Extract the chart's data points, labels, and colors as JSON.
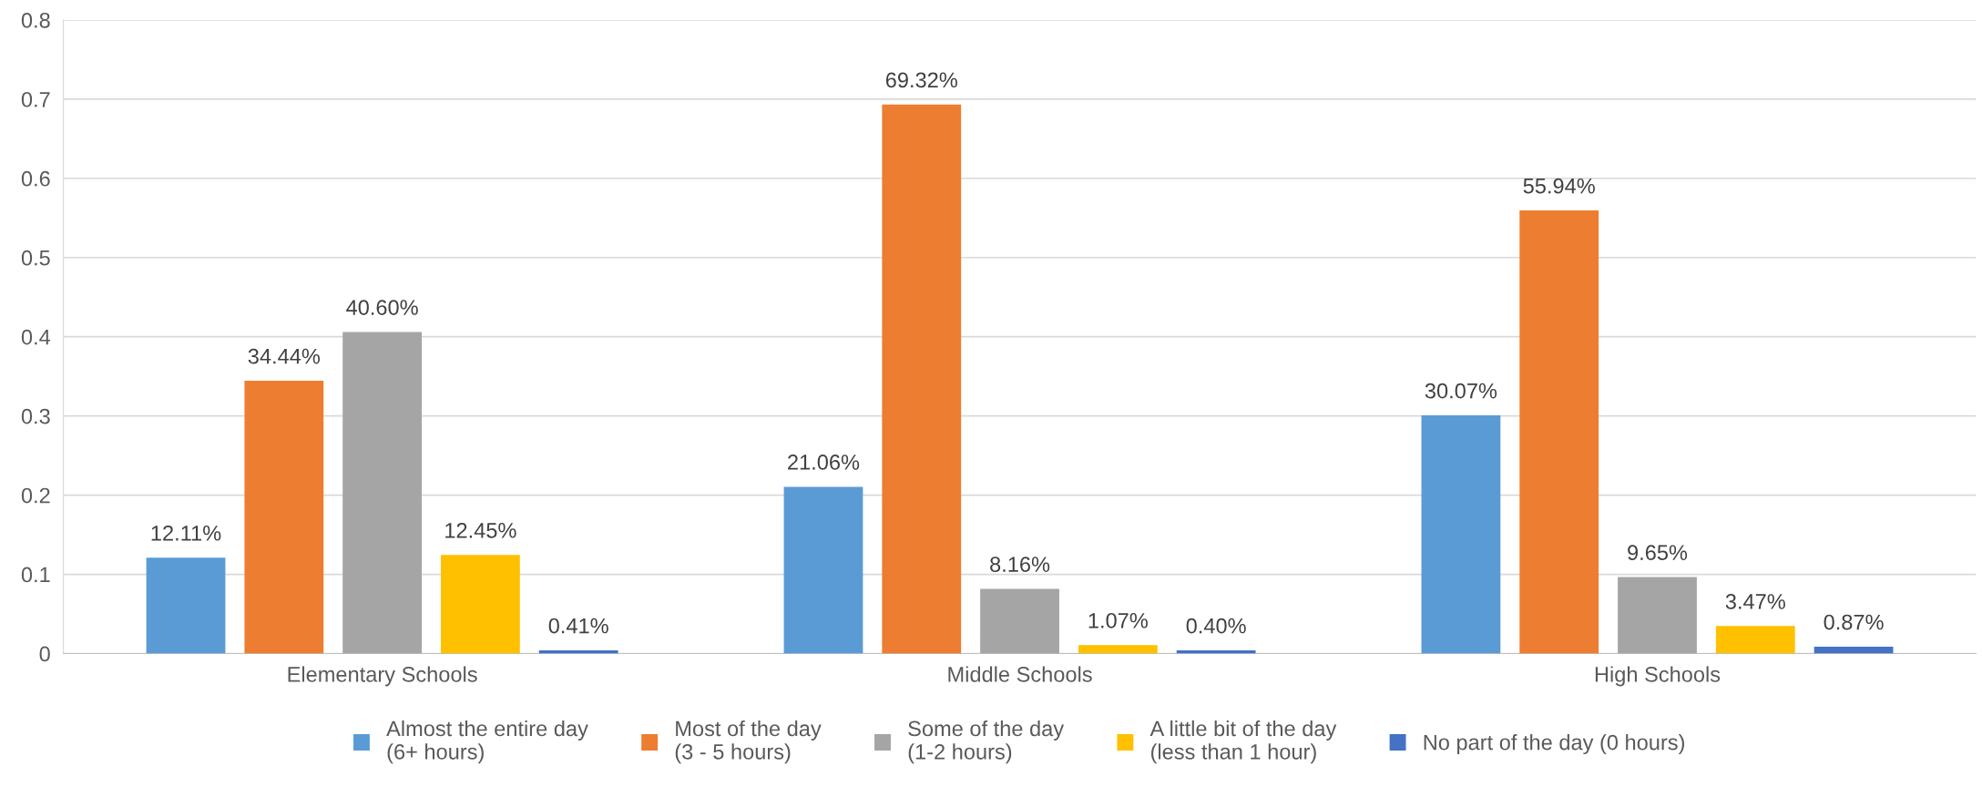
{
  "chart_data": {
    "type": "bar",
    "categories": [
      "Elementary Schools",
      "Middle Schools",
      "High Schools"
    ],
    "series": [
      {
        "name": "Almost the entire day\n(6+ hours)",
        "color": "#5b9bd5",
        "values": [
          0.1211,
          0.2106,
          0.3007
        ],
        "value_labels": [
          "12.11%",
          "21.06%",
          "30.07%"
        ]
      },
      {
        "name": "Most of the day\n(3 - 5 hours)",
        "color": "#ed7d31",
        "values": [
          0.3444,
          0.6932,
          0.5594
        ],
        "value_labels": [
          "34.44%",
          "69.32%",
          "55.94%"
        ]
      },
      {
        "name": "Some of the day\n(1-2 hours)",
        "color": "#a5a5a5",
        "values": [
          0.406,
          0.0816,
          0.0965
        ],
        "value_labels": [
          "40.60%",
          "8.16%",
          "9.65%"
        ]
      },
      {
        "name": "A little bit of the day\n(less than 1 hour)",
        "color": "#ffc000",
        "values": [
          0.1245,
          0.0107,
          0.0347
        ],
        "value_labels": [
          "12.45%",
          "1.07%",
          "3.47%"
        ]
      },
      {
        "name": "No part of the day (0 hours)",
        "color": "#4472c4",
        "values": [
          0.0041,
          0.004,
          0.0087
        ],
        "value_labels": [
          "0.41%",
          "0.40%",
          "0.87%"
        ]
      }
    ],
    "ylim": [
      0,
      0.8
    ],
    "yticks": [
      0,
      0.1,
      0.2,
      0.3,
      0.4,
      0.5,
      0.6,
      0.7,
      0.8
    ],
    "grid": "y",
    "legend": "bottom"
  }
}
